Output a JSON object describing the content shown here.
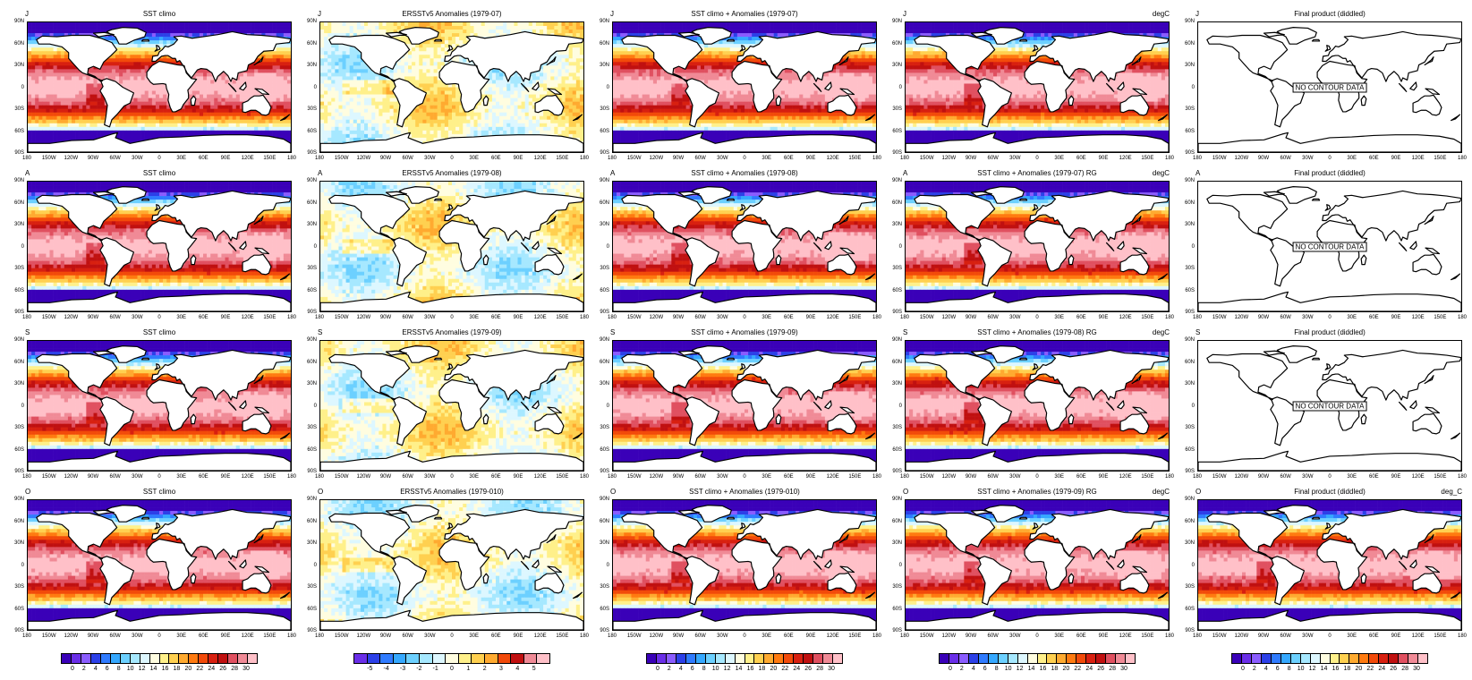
{
  "colors": {
    "sst": [
      "#3a00b8",
      "#6a2ee8",
      "#8a5cff",
      "#2c40e8",
      "#2f7bff",
      "#35a8ff",
      "#6cd0ff",
      "#a6e8ff",
      "#ddf7ff",
      "#fffde0",
      "#fff08a",
      "#ffd050",
      "#ffaa30",
      "#ff7a10",
      "#f24a0a",
      "#d82010",
      "#c01010",
      "#e05060",
      "#f08a96",
      "#ffc0c8"
    ],
    "anom": [
      "#6a2ee8",
      "#2c40e8",
      "#2f7bff",
      "#35a8ff",
      "#6cd0ff",
      "#a6e8ff",
      "#ddf7ff",
      "#fffde0",
      "#fff08a",
      "#ffd050",
      "#ffaa30",
      "#f24a0a",
      "#c01010",
      "#f08a96",
      "#ffc0c8"
    ],
    "land": "#ffffff"
  },
  "lat_labels": [
    "90N",
    "60N",
    "30N",
    "0",
    "30S",
    "60S",
    "90S"
  ],
  "lon_labels": [
    "180",
    "150W",
    "120W",
    "90W",
    "60W",
    "30W",
    "0",
    "30E",
    "60E",
    "90E",
    "120E",
    "150E",
    "180"
  ],
  "no_data_text": "NO CONTOUR DATA",
  "rows": [
    {
      "month": "J",
      "panels": [
        {
          "title": "SST climo",
          "type": "sst",
          "units": ""
        },
        {
          "title": "ERSSTv5 Anomalies (1979-07)",
          "type": "anom",
          "units": ""
        },
        {
          "title": "SST climo + Anomalies (1979-07)",
          "type": "sst",
          "units": ""
        },
        {
          "title": "",
          "type": "sst",
          "units": "degC"
        },
        {
          "title": "Final product (diddled)",
          "type": "empty",
          "units": ""
        }
      ]
    },
    {
      "month": "A",
      "panels": [
        {
          "title": "SST climo",
          "type": "sst",
          "units": ""
        },
        {
          "title": "ERSSTv5 Anomalies (1979-08)",
          "type": "anom",
          "units": ""
        },
        {
          "title": "SST climo + Anomalies (1979-08)",
          "type": "sst",
          "units": ""
        },
        {
          "title": "SST climo + Anomalies (1979-07) RG",
          "type": "sst",
          "units": "degC"
        },
        {
          "title": "Final product (diddled)",
          "type": "empty",
          "units": ""
        }
      ]
    },
    {
      "month": "S",
      "panels": [
        {
          "title": "SST climo",
          "type": "sst",
          "units": ""
        },
        {
          "title": "ERSSTv5 Anomalies (1979-09)",
          "type": "anom",
          "units": ""
        },
        {
          "title": "SST climo + Anomalies (1979-09)",
          "type": "sst",
          "units": ""
        },
        {
          "title": "SST climo + Anomalies (1979-08) RG",
          "type": "sst",
          "units": "degC"
        },
        {
          "title": "Final product (diddled)",
          "type": "empty",
          "units": ""
        }
      ]
    },
    {
      "month": "O",
      "panels": [
        {
          "title": "SST climo",
          "type": "sst",
          "units": ""
        },
        {
          "title": "ERSSTv5 Anomalies (1979-010)",
          "type": "anom",
          "units": ""
        },
        {
          "title": "SST climo + Anomalies (1979-010)",
          "type": "sst",
          "units": ""
        },
        {
          "title": "SST climo + Anomalies (1979-09) RG",
          "type": "sst",
          "units": "degC"
        },
        {
          "title": "Final product (diddled)",
          "type": "sst",
          "units": "deg_C"
        }
      ]
    }
  ],
  "colorbars": [
    {
      "type": "sst",
      "labels": [
        "0",
        "2",
        "4",
        "6",
        "8",
        "10",
        "12",
        "14",
        "16",
        "18",
        "20",
        "22",
        "24",
        "26",
        "28",
        "30"
      ]
    },
    {
      "type": "anom",
      "labels": [
        "-5",
        "-4",
        "-3",
        "-2",
        "-1",
        "0",
        "1",
        "2",
        "3",
        "4",
        "5"
      ]
    },
    {
      "type": "sst",
      "labels": [
        "0",
        "2",
        "4",
        "6",
        "8",
        "10",
        "12",
        "14",
        "16",
        "18",
        "20",
        "22",
        "24",
        "26",
        "28",
        "30"
      ]
    },
    {
      "type": "sst",
      "labels": [
        "0",
        "2",
        "4",
        "6",
        "8",
        "10",
        "12",
        "14",
        "16",
        "18",
        "20",
        "22",
        "24",
        "26",
        "28",
        "30"
      ]
    },
    {
      "type": "sst",
      "labels": [
        "0",
        "2",
        "4",
        "6",
        "8",
        "10",
        "12",
        "14",
        "16",
        "18",
        "20",
        "22",
        "24",
        "26",
        "28",
        "30"
      ]
    }
  ]
}
